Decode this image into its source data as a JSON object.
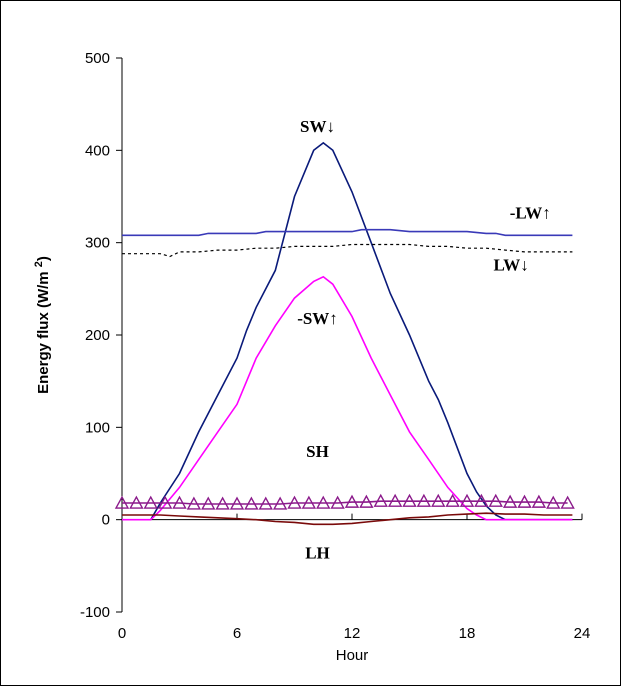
{
  "chart_data": {
    "type": "line",
    "xlabel": "Hour",
    "ylabel": "Energy flux (W/m",
    "ylabel_sup": "2",
    "ylabel_close": ")",
    "xlim": [
      0,
      24
    ],
    "ylim": [
      -100,
      500
    ],
    "xticks": [
      "0",
      "6",
      "12",
      "18",
      "24"
    ],
    "yticks": [
      "-100",
      "0",
      "100",
      "200",
      "300",
      "400",
      "500"
    ],
    "xtick_values": [
      0,
      6,
      12,
      18,
      24
    ],
    "ytick_values": [
      -100,
      0,
      100,
      200,
      300,
      400,
      500
    ],
    "grid": false,
    "legend": "none",
    "annotations": [
      {
        "text": "SW↓",
        "x": 10.2,
        "y": 420
      },
      {
        "text": "-LW↑",
        "x": 21.3,
        "y": 326
      },
      {
        "text": "LW↓",
        "x": 20.3,
        "y": 270
      },
      {
        "text": "-SW↑",
        "x": 10.2,
        "y": 212
      },
      {
        "text": "SH",
        "x": 10.2,
        "y": 68
      },
      {
        "text": "LH",
        "x": 10.2,
        "y": -42
      }
    ],
    "series": [
      {
        "key": "sw_down",
        "color": "#0a1a7a",
        "style": "solid",
        "marker": "none",
        "x": [
          1.5,
          2,
          3,
          4,
          5,
          6,
          6.5,
          7,
          8,
          9,
          10,
          10.5,
          11,
          12,
          13,
          14,
          15,
          16,
          16.5,
          17,
          18,
          18.5,
          19,
          19.5,
          20,
          20.5,
          21,
          22,
          23,
          23.5
        ],
        "y": [
          0,
          18,
          50,
          95,
          135,
          175,
          205,
          230,
          270,
          350,
          400,
          408,
          400,
          355,
          300,
          245,
          200,
          150,
          130,
          105,
          50,
          30,
          15,
          5,
          0,
          0,
          0,
          0,
          0,
          0
        ]
      },
      {
        "key": "sw_up",
        "color": "#ff00ff",
        "style": "solid",
        "marker": "none",
        "x": [
          0,
          1,
          1.5,
          2,
          3,
          4,
          5,
          6,
          7,
          8,
          9,
          10,
          10.5,
          11,
          12,
          13,
          14,
          15,
          16,
          17,
          18,
          18.5,
          19,
          19.5,
          20,
          21,
          22,
          23,
          23.5
        ],
        "y": [
          0,
          0,
          0,
          10,
          35,
          65,
          95,
          125,
          175,
          210,
          240,
          258,
          263,
          255,
          220,
          175,
          135,
          95,
          65,
          35,
          12,
          5,
          0,
          0,
          0,
          0,
          0,
          0,
          0
        ]
      },
      {
        "key": "lw_up",
        "color": "#3a3ab8",
        "style": "solid",
        "marker": "none",
        "x": [
          0,
          1,
          2,
          3,
          4,
          4.5,
          5,
          6,
          7,
          7.5,
          8,
          9,
          10,
          11,
          12,
          12.5,
          13,
          14,
          15,
          16,
          17,
          18,
          19,
          19.5,
          20,
          21,
          22,
          23,
          23.5
        ],
        "y": [
          308,
          308,
          308,
          308,
          308,
          310,
          310,
          310,
          310,
          312,
          312,
          312,
          312,
          312,
          312,
          314,
          314,
          314,
          312,
          312,
          312,
          312,
          310,
          310,
          308,
          308,
          308,
          308,
          308
        ]
      },
      {
        "key": "lw_down",
        "color": "#000000",
        "style": "dashed",
        "marker": "none",
        "x": [
          0,
          1,
          2,
          2.5,
          3,
          4,
          5,
          6,
          7,
          8,
          9,
          10,
          11,
          12,
          13,
          14,
          15,
          16,
          17,
          18,
          19,
          20,
          21,
          22,
          23,
          23.5
        ],
        "y": [
          288,
          288,
          288,
          285,
          290,
          290,
          292,
          292,
          294,
          294,
          296,
          296,
          296,
          298,
          298,
          298,
          298,
          296,
          296,
          294,
          294,
          292,
          290,
          290,
          290,
          290
        ]
      },
      {
        "key": "sh",
        "color": "#8b1a8b",
        "style": "solid",
        "marker": "triangle",
        "x": [
          0,
          0.75,
          1.5,
          2.25,
          3,
          3.75,
          4.5,
          5.25,
          6,
          6.75,
          7.5,
          8.25,
          9,
          9.75,
          10.5,
          11.25,
          12,
          12.75,
          13.5,
          14.25,
          15,
          15.75,
          16.5,
          17.25,
          18,
          18.75,
          19.5,
          20.25,
          21,
          21.75,
          22.5,
          23.25
        ],
        "y": [
          18,
          18,
          18,
          18,
          18,
          17,
          17,
          17,
          17,
          17,
          17,
          17,
          18,
          18,
          18,
          18,
          19,
          19,
          20,
          20,
          20,
          20,
          20,
          20,
          20,
          20,
          20,
          19,
          19,
          19,
          18,
          18
        ]
      },
      {
        "key": "lh",
        "color": "#7a0a0a",
        "style": "solid",
        "marker": "none",
        "x": [
          0,
          1,
          2,
          3,
          4,
          5,
          6,
          7,
          8,
          9,
          10,
          11,
          12,
          13,
          14,
          15,
          16,
          17,
          18,
          19,
          20,
          21,
          22,
          23,
          23.5
        ],
        "y": [
          5,
          5,
          5,
          4,
          3,
          2,
          1,
          0,
          -2,
          -3,
          -5,
          -5,
          -4,
          -2,
          0,
          2,
          3,
          5,
          6,
          7,
          6,
          6,
          5,
          5,
          5
        ]
      }
    ]
  }
}
